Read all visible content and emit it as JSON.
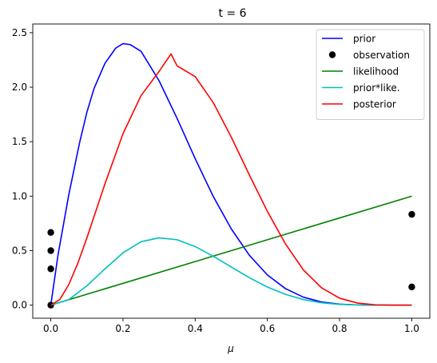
{
  "chart_data": {
    "type": "line",
    "title": "t = 6",
    "xlabel": "μ",
    "ylabel": "",
    "xlim": [
      -0.05,
      1.05
    ],
    "ylim": [
      -0.12,
      2.58
    ],
    "xticks": [
      0.0,
      0.2,
      0.4,
      0.6,
      0.8,
      1.0
    ],
    "xtick_labels": [
      "0.0",
      "0.2",
      "0.4",
      "0.6",
      "0.8",
      "1.0"
    ],
    "yticks": [
      0.0,
      0.5,
      1.0,
      1.5,
      2.0,
      2.5
    ],
    "ytick_labels": [
      "0.0",
      "0.5",
      "1.0",
      "1.5",
      "2.0",
      "2.5"
    ],
    "grid": false,
    "legend_position": "top-right",
    "series": [
      {
        "name": "prior",
        "style": "line",
        "color": "#0000ff",
        "x": [
          0.0,
          0.02,
          0.05,
          0.08,
          0.1,
          0.12,
          0.15,
          0.18,
          0.2,
          0.22,
          0.25,
          0.3,
          0.35,
          0.4,
          0.45,
          0.5,
          0.55,
          0.6,
          0.65,
          0.7,
          0.75,
          0.8,
          0.85,
          0.9,
          0.95,
          1.0
        ],
        "y": [
          0.0,
          0.461,
          1.016,
          1.495,
          1.771,
          1.99,
          2.219,
          2.359,
          2.4,
          2.391,
          2.329,
          2.059,
          1.713,
          1.344,
          0.998,
          0.7,
          0.458,
          0.277,
          0.152,
          0.073,
          0.029,
          0.009,
          0.002,
          0.0,
          0.0,
          0.0
        ]
      },
      {
        "name": "observation",
        "style": "markers",
        "color": "#000000",
        "x": [
          0.0,
          0.0,
          0.0,
          0.0,
          1.0,
          1.0
        ],
        "y": [
          0.0,
          0.333,
          0.5,
          0.667,
          0.167,
          0.833
        ]
      },
      {
        "name": "likelihood",
        "style": "line",
        "color": "#008000",
        "x": [
          0.0,
          1.0
        ],
        "y": [
          0.0,
          1.0
        ]
      },
      {
        "name": "prior*like.",
        "style": "line",
        "color": "#00bfbf",
        "x": [
          0.0,
          0.05,
          0.1,
          0.15,
          0.2,
          0.25,
          0.3,
          0.35,
          0.4,
          0.45,
          0.5,
          0.55,
          0.6,
          0.65,
          0.7,
          0.75,
          0.8,
          0.85,
          0.9,
          0.95,
          1.0
        ],
        "y": [
          0.0,
          0.051,
          0.177,
          0.333,
          0.48,
          0.582,
          0.618,
          0.6,
          0.538,
          0.449,
          0.35,
          0.252,
          0.166,
          0.099,
          0.051,
          0.022,
          0.007,
          0.002,
          0.0,
          0.0,
          0.0
        ]
      },
      {
        "name": "posterior",
        "style": "line",
        "color": "#ff0000",
        "x": [
          0.0,
          0.025,
          0.05,
          0.075,
          0.1,
          0.15,
          0.2,
          0.25,
          0.3,
          0.333,
          0.35,
          0.4,
          0.45,
          0.5,
          0.55,
          0.6,
          0.65,
          0.7,
          0.75,
          0.8,
          0.85,
          0.9,
          0.95,
          1.0
        ],
        "y": [
          0.0,
          0.052,
          0.19,
          0.386,
          0.617,
          1.113,
          1.573,
          1.923,
          2.145,
          2.305,
          2.195,
          2.097,
          1.859,
          1.542,
          1.195,
          0.86,
          0.563,
          0.322,
          0.159,
          0.064,
          0.019,
          0.003,
          0.0,
          0.0
        ]
      }
    ]
  }
}
